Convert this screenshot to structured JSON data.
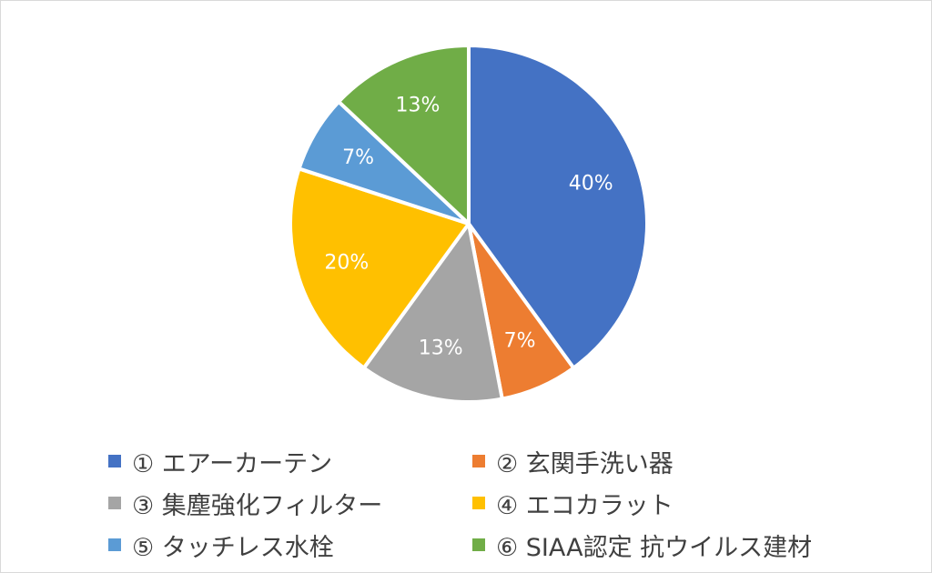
{
  "chart_data": {
    "type": "pie",
    "title": "",
    "legend_position": "bottom",
    "slices": [
      {
        "name": "① エアーカーテン",
        "value": 40,
        "label": "40%",
        "color": "#4472C4"
      },
      {
        "name": "② 玄関手洗い器",
        "value": 7,
        "label": "7%",
        "color": "#ED7D31"
      },
      {
        "name": "③ 集塵強化フィルター",
        "value": 13,
        "label": "13%",
        "color": "#A5A5A5"
      },
      {
        "name": "④ エコカラット",
        "value": 20,
        "label": "20%",
        "color": "#FFC000"
      },
      {
        "name": "⑤ タッチレス水栓",
        "value": 7,
        "label": "7%",
        "color": "#5B9BD5"
      },
      {
        "name": "⑥ SIAA認定 抗ウイルス建材",
        "value": 13,
        "label": "13%",
        "color": "#70AD47"
      }
    ]
  }
}
